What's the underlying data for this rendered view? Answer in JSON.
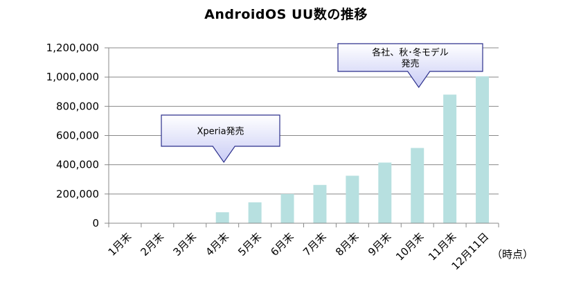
{
  "chart_data": {
    "type": "bar",
    "title": "AndroidOS  UU数の推移",
    "categories": [
      "1月末",
      "2月末",
      "3月末",
      "4月末",
      "5月末",
      "6月末",
      "7月末",
      "8月末",
      "9月末",
      "10月末",
      "11月末",
      "12月11日"
    ],
    "values": [
      0,
      0,
      0,
      75000,
      143000,
      200000,
      262000,
      325000,
      415000,
      515000,
      880000,
      1005000
    ],
    "ylim": [
      0,
      1200000
    ],
    "yticks": [
      0,
      200000,
      400000,
      600000,
      800000,
      1000000,
      1200000
    ],
    "ytick_labels": [
      "0",
      "200,000",
      "400,000",
      "600,000",
      "800,000",
      "1,000,000",
      "1,200,000"
    ],
    "x_unit_label": "（時点）",
    "grid": true,
    "bar_color": "#b7e0e0",
    "annotations": [
      {
        "id": "xperia",
        "lines": [
          "Xperia発売"
        ],
        "target_category": "4月末"
      },
      {
        "id": "models",
        "lines": [
          "各社、秋･冬モデル",
          "発売"
        ],
        "target_category": "10月末"
      }
    ]
  },
  "colors": {
    "callout_fill_top": "#ffffff",
    "callout_fill_bottom": "#c9ccf5",
    "callout_stroke": "#2b2f8c",
    "axis": "#888888",
    "grid": "#888888"
  }
}
